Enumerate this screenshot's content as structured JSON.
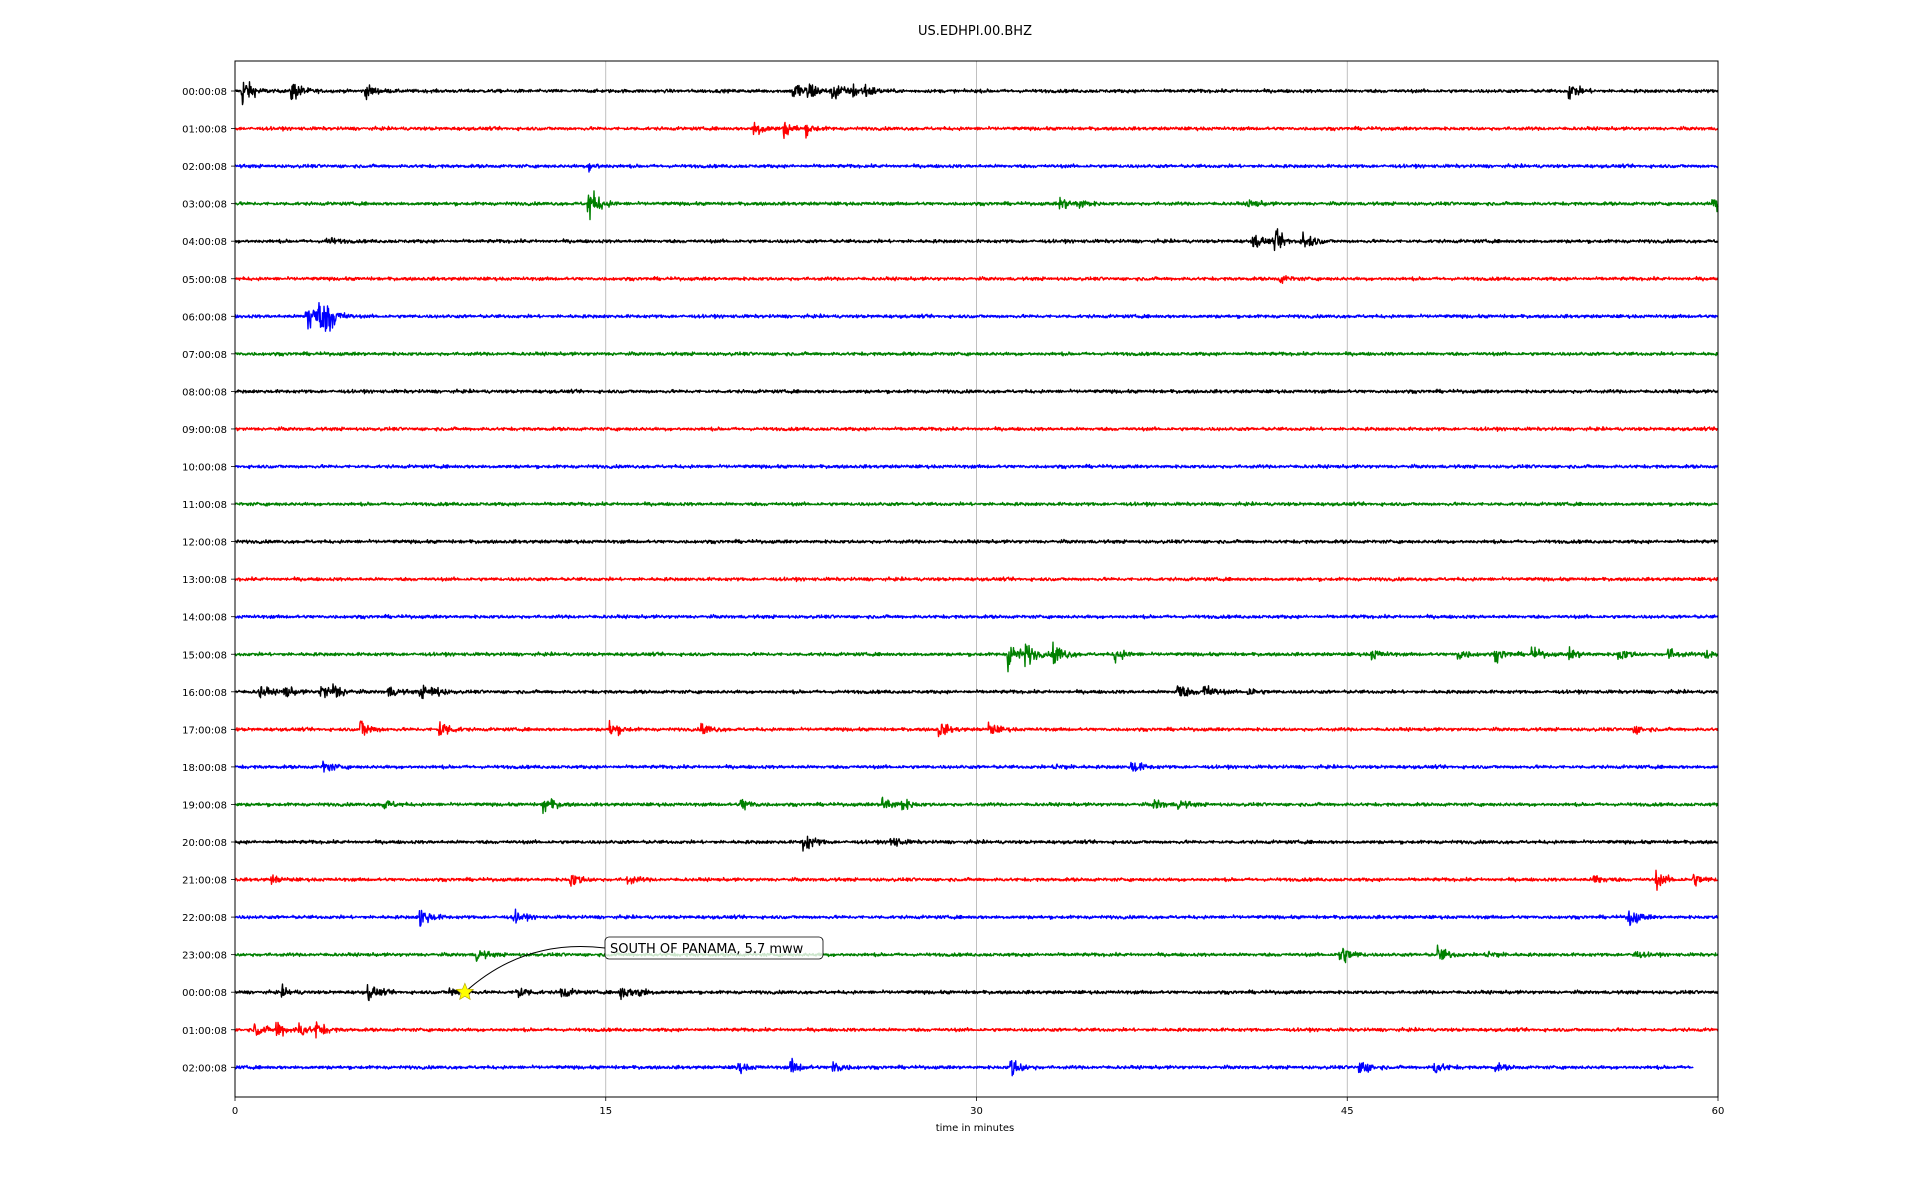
{
  "chart_data": {
    "type": "line",
    "title": "US.EDHPI.00.BHZ",
    "xlabel": "time in minutes",
    "ylabel": "",
    "xlim": [
      0,
      60
    ],
    "xticks": [
      0,
      15,
      30,
      45,
      60
    ],
    "xtick_labels": [
      "0",
      "15",
      "30",
      "45",
      "60"
    ],
    "grid": "vertical lines at 15, 30, 45",
    "line_colors": [
      "#000000",
      "#ff0000",
      "#0000ff",
      "#008000"
    ],
    "rows": [
      {
        "label": "00:00:08",
        "color": "#000000",
        "events": [
          [
            0.3,
            2.2
          ],
          [
            2.3,
            1.6
          ],
          [
            5.3,
            0.9
          ],
          [
            22.6,
            1.6
          ],
          [
            23.2,
            1.3
          ],
          [
            24.2,
            1.6
          ],
          [
            25.0,
            0.9
          ],
          [
            25.5,
            0.8
          ],
          [
            54.0,
            1.1
          ]
        ]
      },
      {
        "label": "01:00:08",
        "color": "#ff0000",
        "events": [
          [
            21.0,
            1.3
          ],
          [
            22.2,
            1.1
          ],
          [
            23.1,
            0.7
          ]
        ]
      },
      {
        "label": "02:00:08",
        "color": "#0000ff",
        "events": [
          [
            14.3,
            0.6
          ]
        ]
      },
      {
        "label": "03:00:08",
        "color": "#008000",
        "events": [
          [
            14.3,
            2.6
          ],
          [
            33.4,
            0.9
          ],
          [
            34.1,
            0.7
          ],
          [
            41.0,
            0.6
          ],
          [
            59.8,
            1.2
          ]
        ]
      },
      {
        "label": "04:00:08",
        "color": "#000000",
        "events": [
          [
            3.7,
            0.6
          ],
          [
            41.2,
            1.1
          ],
          [
            42.1,
            1.4
          ],
          [
            43.2,
            1.5
          ]
        ]
      },
      {
        "label": "05:00:08",
        "color": "#ff0000",
        "events": [
          [
            42.3,
            0.5
          ]
        ]
      },
      {
        "label": "06:00:08",
        "color": "#0000ff",
        "events": [
          [
            2.9,
            3.0
          ],
          [
            3.4,
            1.6
          ],
          [
            3.7,
            2.2
          ]
        ]
      },
      {
        "label": "07:00:08",
        "color": "#008000",
        "events": []
      },
      {
        "label": "08:00:08",
        "color": "#000000",
        "events": []
      },
      {
        "label": "09:00:08",
        "color": "#ff0000",
        "events": []
      },
      {
        "label": "10:00:08",
        "color": "#0000ff",
        "events": []
      },
      {
        "label": "11:00:08",
        "color": "#008000",
        "events": []
      },
      {
        "label": "12:00:08",
        "color": "#000000",
        "events": []
      },
      {
        "label": "13:00:08",
        "color": "#ff0000",
        "events": []
      },
      {
        "label": "14:00:08",
        "color": "#0000ff",
        "events": []
      },
      {
        "label": "15:00:08",
        "color": "#008000",
        "events": [
          [
            31.3,
            2.0
          ],
          [
            32.0,
            1.4
          ],
          [
            33.1,
            1.9
          ],
          [
            35.6,
            1.0
          ],
          [
            46.0,
            0.7
          ],
          [
            49.5,
            0.8
          ],
          [
            51.0,
            0.9
          ],
          [
            52.5,
            0.8
          ],
          [
            54.0,
            0.8
          ],
          [
            56.0,
            0.9
          ],
          [
            58.0,
            0.8
          ],
          [
            59.5,
            0.7
          ]
        ]
      },
      {
        "label": "16:00:08",
        "color": "#000000",
        "events": [
          [
            1.0,
            0.9
          ],
          [
            2.0,
            0.8
          ],
          [
            3.5,
            1.1
          ],
          [
            4.0,
            1.0
          ],
          [
            6.2,
            0.8
          ],
          [
            7.5,
            0.9
          ],
          [
            8.0,
            0.7
          ],
          [
            38.1,
            1.4
          ],
          [
            39.2,
            1.2
          ],
          [
            41.0,
            0.6
          ]
        ]
      },
      {
        "label": "17:00:08",
        "color": "#ff0000",
        "events": [
          [
            5.1,
            1.4
          ],
          [
            8.3,
            1.4
          ],
          [
            15.2,
            1.1
          ],
          [
            18.9,
            0.8
          ],
          [
            28.5,
            1.0
          ],
          [
            30.5,
            0.9
          ],
          [
            56.6,
            0.6
          ]
        ]
      },
      {
        "label": "18:00:08",
        "color": "#0000ff",
        "events": [
          [
            3.6,
            0.8
          ],
          [
            33.2,
            0.6
          ],
          [
            36.3,
            0.9
          ]
        ]
      },
      {
        "label": "19:00:08",
        "color": "#008000",
        "events": [
          [
            6.0,
            0.7
          ],
          [
            12.5,
            1.3
          ],
          [
            20.5,
            0.9
          ],
          [
            26.2,
            1.2
          ],
          [
            27.0,
            0.7
          ],
          [
            37.2,
            0.7
          ],
          [
            38.2,
            0.6
          ]
        ]
      },
      {
        "label": "20:00:08",
        "color": "#000000",
        "events": [
          [
            23.0,
            1.5
          ],
          [
            26.5,
            0.9
          ]
        ]
      },
      {
        "label": "21:00:08",
        "color": "#ff0000",
        "events": [
          [
            1.5,
            0.5
          ],
          [
            13.6,
            1.0
          ],
          [
            15.9,
            0.6
          ],
          [
            55.0,
            0.8
          ],
          [
            57.5,
            1.1
          ],
          [
            59.0,
            0.9
          ]
        ]
      },
      {
        "label": "22:00:08",
        "color": "#0000ff",
        "events": [
          [
            7.5,
            1.5
          ],
          [
            11.3,
            0.8
          ],
          [
            56.4,
            1.3
          ]
        ]
      },
      {
        "label": "23:00:08",
        "color": "#008000",
        "events": [
          [
            9.8,
            0.8
          ],
          [
            44.7,
            1.7
          ],
          [
            48.7,
            1.1
          ],
          [
            50.7,
            0.7
          ],
          [
            56.6,
            0.5
          ]
        ]
      },
      {
        "label": "00:00:08",
        "color": "#000000",
        "events": [
          [
            1.9,
            0.6
          ],
          [
            5.4,
            1.1
          ],
          [
            8.7,
            0.7
          ],
          [
            11.4,
            1.1
          ],
          [
            13.2,
            0.8
          ],
          [
            15.6,
            1.1
          ],
          [
            16.3,
            0.7
          ]
        ]
      },
      {
        "label": "01:00:08",
        "color": "#ff0000",
        "events": [
          [
            0.8,
            1.0
          ],
          [
            1.7,
            1.2
          ],
          [
            2.6,
            1.0
          ],
          [
            3.3,
            1.0
          ]
        ]
      },
      {
        "label": "02:00:08",
        "color": "#0000ff",
        "events": [
          [
            20.3,
            0.8
          ],
          [
            22.5,
            1.0
          ],
          [
            24.2,
            1.0
          ],
          [
            31.4,
            1.4
          ],
          [
            45.5,
            1.2
          ],
          [
            48.5,
            1.0
          ],
          [
            51.0,
            0.5
          ]
        ],
        "end_minute": 59
      }
    ],
    "annotation": {
      "text": "SOUTH OF PANAMA, 5.7 mww",
      "row_index": 24,
      "minute": 9.3,
      "marker": "star",
      "marker_color": "#ffff00"
    }
  }
}
